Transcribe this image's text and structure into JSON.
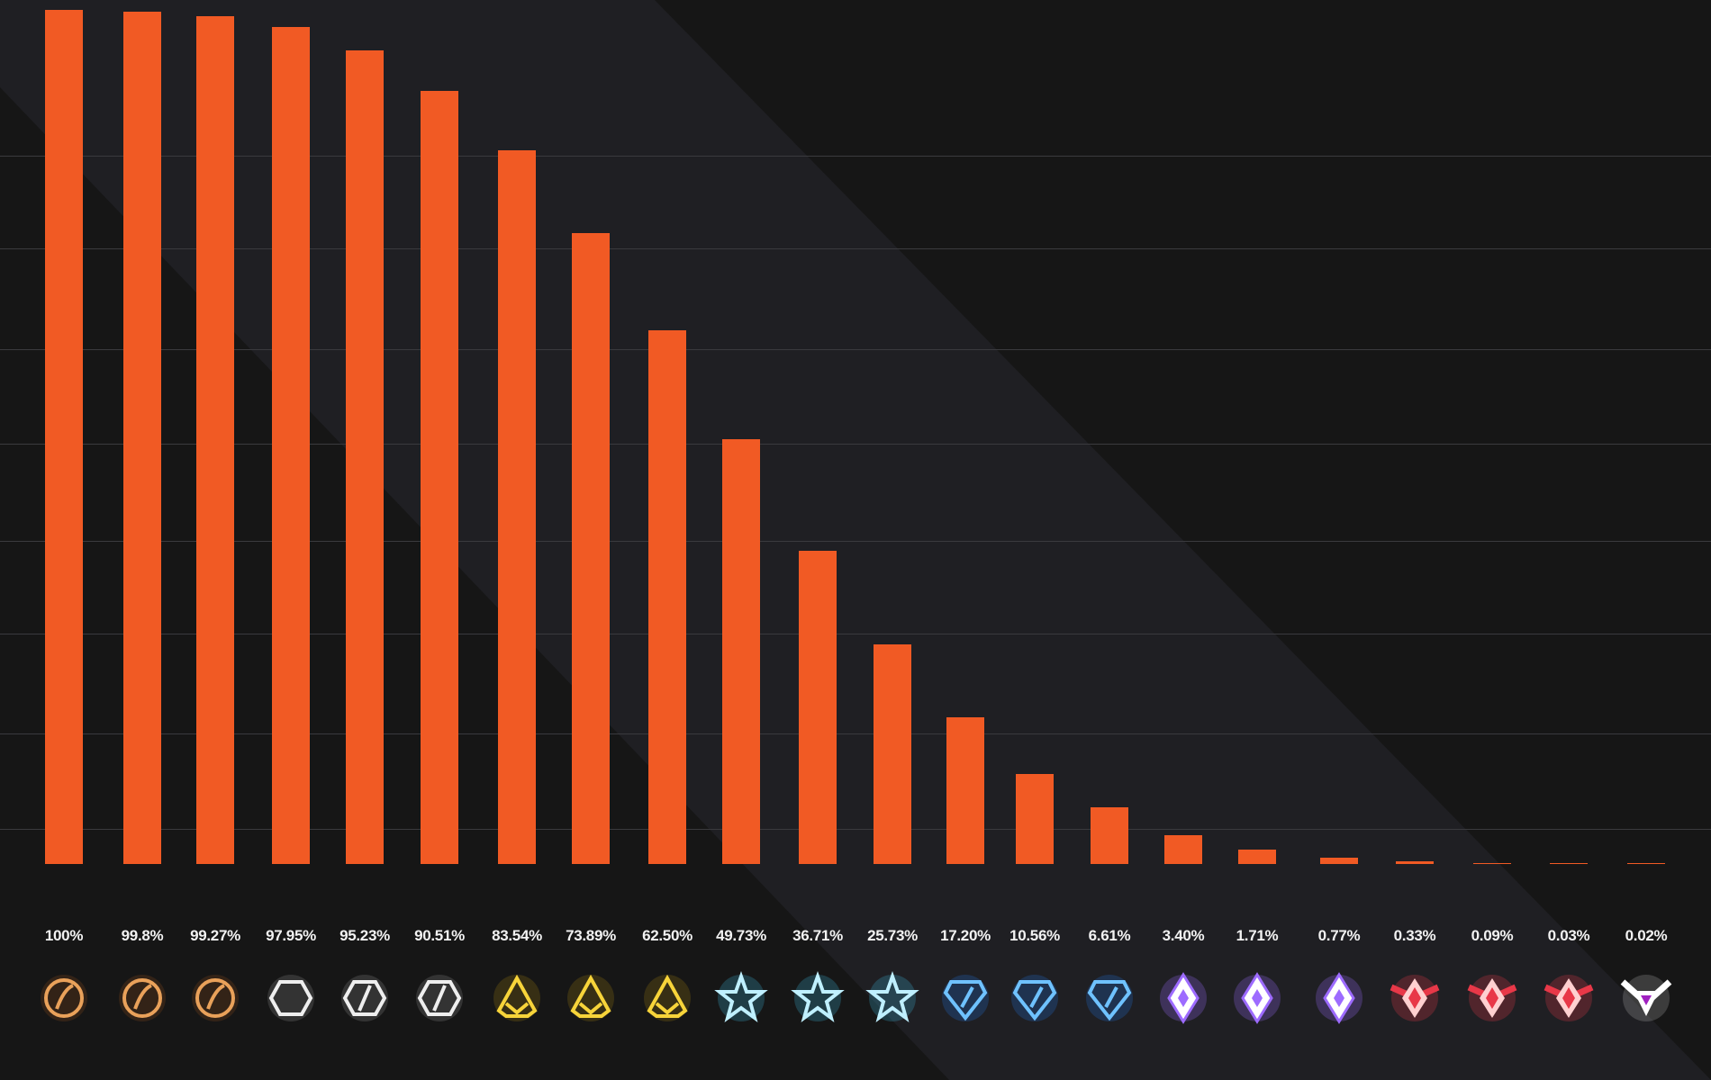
{
  "colors": {
    "bar": "#f15a24",
    "background": "#161616",
    "band": "#1f1f23"
  },
  "chart_data": {
    "type": "bar",
    "title": "",
    "xlabel": "",
    "ylabel": "",
    "ylim": [
      0,
      100
    ],
    "grid": true,
    "categories": [
      "100%",
      "99.8%",
      "99.27%",
      "97.95%",
      "95.23%",
      "90.51%",
      "83.54%",
      "73.89%",
      "62.50%",
      "49.73%",
      "36.71%",
      "25.73%",
      "17.20%",
      "10.56%",
      "6.61%",
      "3.40%",
      "1.71%",
      "0.77%",
      "0.33%",
      "0.09%",
      "0.03%",
      "0.02%"
    ],
    "values": [
      100,
      99.8,
      99.27,
      97.95,
      95.23,
      90.51,
      83.54,
      73.89,
      62.5,
      49.73,
      36.71,
      25.73,
      17.2,
      10.56,
      6.61,
      3.4,
      1.71,
      0.77,
      0.33,
      0.09,
      0.03,
      0.02
    ],
    "icons": [
      "bronze-1-icon",
      "bronze-2-icon",
      "bronze-3-icon",
      "silver-1-icon",
      "silver-2-icon",
      "silver-3-icon",
      "gold-1-icon",
      "gold-2-icon",
      "gold-3-icon",
      "platinum-1-icon",
      "platinum-2-icon",
      "platinum-3-icon",
      "diamond-1-icon",
      "diamond-2-icon",
      "diamond-3-icon",
      "champion-1-icon",
      "champion-2-icon",
      "champion-3-icon",
      "grand-champion-1-icon",
      "grand-champion-2-icon",
      "grand-champion-3-icon",
      "supersonic-legend-icon"
    ]
  }
}
